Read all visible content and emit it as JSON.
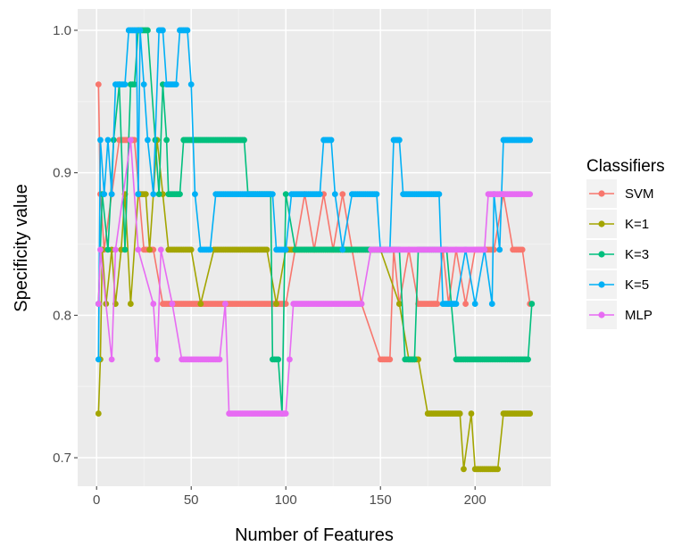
{
  "chart_data": {
    "type": "line",
    "xlabel": "Number of Features",
    "ylabel": "Specificity value",
    "xlim": [
      -10,
      240
    ],
    "ylim": [
      0.68,
      1.015
    ],
    "x_ticks": [
      0,
      50,
      100,
      150,
      200
    ],
    "y_ticks": [
      0.7,
      0.8,
      0.9,
      1.0
    ],
    "y_tick_labels": [
      "0.7",
      "0.8",
      "0.9",
      "1.0"
    ],
    "grid": true,
    "legend": {
      "title": "Classifiers",
      "placement": "right"
    },
    "series": [
      {
        "name": "SVM",
        "color": "#f8766d",
        "points": [
          [
            1,
            0.962
          ],
          [
            2,
            0.885
          ],
          [
            4,
            0.846
          ],
          [
            8,
            0.885
          ],
          [
            12,
            0.923
          ],
          [
            20,
            0.923
          ],
          [
            25,
            0.846
          ],
          [
            30,
            0.846
          ],
          [
            35,
            0.808
          ],
          [
            50,
            0.808
          ],
          [
            100,
            0.808
          ],
          [
            110,
            0.885
          ],
          [
            115,
            0.846
          ],
          [
            120,
            0.885
          ],
          [
            125,
            0.846
          ],
          [
            130,
            0.885
          ],
          [
            135,
            0.846
          ],
          [
            140,
            0.808
          ],
          [
            150,
            0.769
          ],
          [
            155,
            0.769
          ],
          [
            157,
            0.846
          ],
          [
            160,
            0.808
          ],
          [
            165,
            0.846
          ],
          [
            170,
            0.808
          ],
          [
            180,
            0.808
          ],
          [
            183,
            0.846
          ],
          [
            186,
            0.808
          ],
          [
            190,
            0.846
          ],
          [
            195,
            0.808
          ],
          [
            200,
            0.846
          ],
          [
            205,
            0.846
          ],
          [
            210,
            0.846
          ],
          [
            215,
            0.885
          ],
          [
            220,
            0.846
          ],
          [
            225,
            0.846
          ],
          [
            229,
            0.808
          ]
        ]
      },
      {
        "name": "K=1",
        "color": "#a3a500",
        "points": [
          [
            1,
            0.731
          ],
          [
            2,
            0.769
          ],
          [
            3,
            0.846
          ],
          [
            5,
            0.808
          ],
          [
            8,
            0.846
          ],
          [
            10,
            0.808
          ],
          [
            13,
            0.846
          ],
          [
            15,
            0.885
          ],
          [
            18,
            0.808
          ],
          [
            22,
            0.885
          ],
          [
            26,
            0.885
          ],
          [
            28,
            0.846
          ],
          [
            32,
            0.923
          ],
          [
            35,
            0.885
          ],
          [
            38,
            0.846
          ],
          [
            42,
            0.846
          ],
          [
            45,
            0.846
          ],
          [
            50,
            0.846
          ],
          [
            55,
            0.808
          ],
          [
            62,
            0.846
          ],
          [
            70,
            0.846
          ],
          [
            80,
            0.846
          ],
          [
            90,
            0.846
          ],
          [
            95,
            0.808
          ],
          [
            100,
            0.846
          ],
          [
            110,
            0.846
          ],
          [
            120,
            0.846
          ],
          [
            130,
            0.846
          ],
          [
            140,
            0.846
          ],
          [
            150,
            0.846
          ],
          [
            160,
            0.808
          ],
          [
            165,
            0.769
          ],
          [
            170,
            0.769
          ],
          [
            175,
            0.731
          ],
          [
            185,
            0.731
          ],
          [
            192,
            0.731
          ],
          [
            194,
            0.692
          ],
          [
            198,
            0.731
          ],
          [
            200,
            0.692
          ],
          [
            212,
            0.692
          ],
          [
            215,
            0.731
          ],
          [
            229,
            0.731
          ]
        ]
      },
      {
        "name": "K=3",
        "color": "#00bf7d",
        "points": [
          [
            1,
            0.808
          ],
          [
            3,
            0.885
          ],
          [
            6,
            0.846
          ],
          [
            9,
            0.923
          ],
          [
            12,
            0.962
          ],
          [
            15,
            0.846
          ],
          [
            18,
            0.962
          ],
          [
            20,
            0.962
          ],
          [
            22,
            1.0
          ],
          [
            27,
            1.0
          ],
          [
            31,
            0.923
          ],
          [
            33,
            0.885
          ],
          [
            35,
            0.962
          ],
          [
            37,
            0.923
          ],
          [
            38,
            0.885
          ],
          [
            44,
            0.885
          ],
          [
            46,
            0.923
          ],
          [
            70,
            0.923
          ],
          [
            78,
            0.923
          ],
          [
            80,
            0.885
          ],
          [
            92,
            0.885
          ],
          [
            93,
            0.769
          ],
          [
            96,
            0.769
          ],
          [
            98,
            0.731
          ],
          [
            100,
            0.885
          ],
          [
            105,
            0.846
          ],
          [
            110,
            0.846
          ],
          [
            130,
            0.846
          ],
          [
            140,
            0.846
          ],
          [
            150,
            0.846
          ],
          [
            155,
            0.846
          ],
          [
            160,
            0.846
          ],
          [
            163,
            0.769
          ],
          [
            168,
            0.769
          ],
          [
            170,
            0.846
          ],
          [
            185,
            0.846
          ],
          [
            190,
            0.769
          ],
          [
            200,
            0.769
          ],
          [
            215,
            0.769
          ],
          [
            228,
            0.769
          ],
          [
            230,
            0.808
          ]
        ]
      },
      {
        "name": "K=5",
        "color": "#00b0f6",
        "points": [
          [
            1,
            0.769
          ],
          [
            2,
            0.923
          ],
          [
            4,
            0.885
          ],
          [
            6,
            0.923
          ],
          [
            8,
            0.885
          ],
          [
            10,
            0.962
          ],
          [
            15,
            0.962
          ],
          [
            17,
            1.0
          ],
          [
            21,
            1.0
          ],
          [
            22,
            0.885
          ],
          [
            23,
            1.0
          ],
          [
            25,
            0.962
          ],
          [
            27,
            0.923
          ],
          [
            30,
            0.885
          ],
          [
            33,
            1.0
          ],
          [
            35,
            1.0
          ],
          [
            37,
            0.962
          ],
          [
            42,
            0.962
          ],
          [
            44,
            1.0
          ],
          [
            48,
            1.0
          ],
          [
            50,
            0.962
          ],
          [
            52,
            0.885
          ],
          [
            55,
            0.846
          ],
          [
            60,
            0.846
          ],
          [
            63,
            0.885
          ],
          [
            70,
            0.885
          ],
          [
            93,
            0.885
          ],
          [
            95,
            0.846
          ],
          [
            100,
            0.846
          ],
          [
            103,
            0.885
          ],
          [
            118,
            0.885
          ],
          [
            120,
            0.923
          ],
          [
            124,
            0.923
          ],
          [
            126,
            0.885
          ],
          [
            130,
            0.846
          ],
          [
            135,
            0.885
          ],
          [
            148,
            0.885
          ],
          [
            150,
            0.846
          ],
          [
            155,
            0.846
          ],
          [
            157,
            0.923
          ],
          [
            160,
            0.923
          ],
          [
            162,
            0.885
          ],
          [
            176,
            0.885
          ],
          [
            178,
            0.885
          ],
          [
            181,
            0.885
          ],
          [
            183,
            0.808
          ],
          [
            190,
            0.808
          ],
          [
            195,
            0.846
          ],
          [
            200,
            0.808
          ],
          [
            205,
            0.846
          ],
          [
            209,
            0.808
          ],
          [
            210,
            0.885
          ],
          [
            213,
            0.846
          ],
          [
            215,
            0.923
          ],
          [
            229,
            0.923
          ]
        ]
      },
      {
        "name": "MLP",
        "color": "#e76bf3",
        "points": [
          [
            1,
            0.808
          ],
          [
            2,
            0.846
          ],
          [
            8,
            0.769
          ],
          [
            10,
            0.846
          ],
          [
            18,
            0.923
          ],
          [
            22,
            0.846
          ],
          [
            30,
            0.808
          ],
          [
            32,
            0.769
          ],
          [
            34,
            0.846
          ],
          [
            40,
            0.808
          ],
          [
            45,
            0.769
          ],
          [
            60,
            0.769
          ],
          [
            65,
            0.769
          ],
          [
            68,
            0.808
          ],
          [
            70,
            0.731
          ],
          [
            100,
            0.731
          ],
          [
            102,
            0.769
          ],
          [
            104,
            0.808
          ],
          [
            110,
            0.808
          ],
          [
            140,
            0.808
          ],
          [
            145,
            0.846
          ],
          [
            150,
            0.846
          ],
          [
            190,
            0.846
          ],
          [
            205,
            0.846
          ],
          [
            207,
            0.885
          ],
          [
            229,
            0.885
          ]
        ]
      }
    ]
  }
}
